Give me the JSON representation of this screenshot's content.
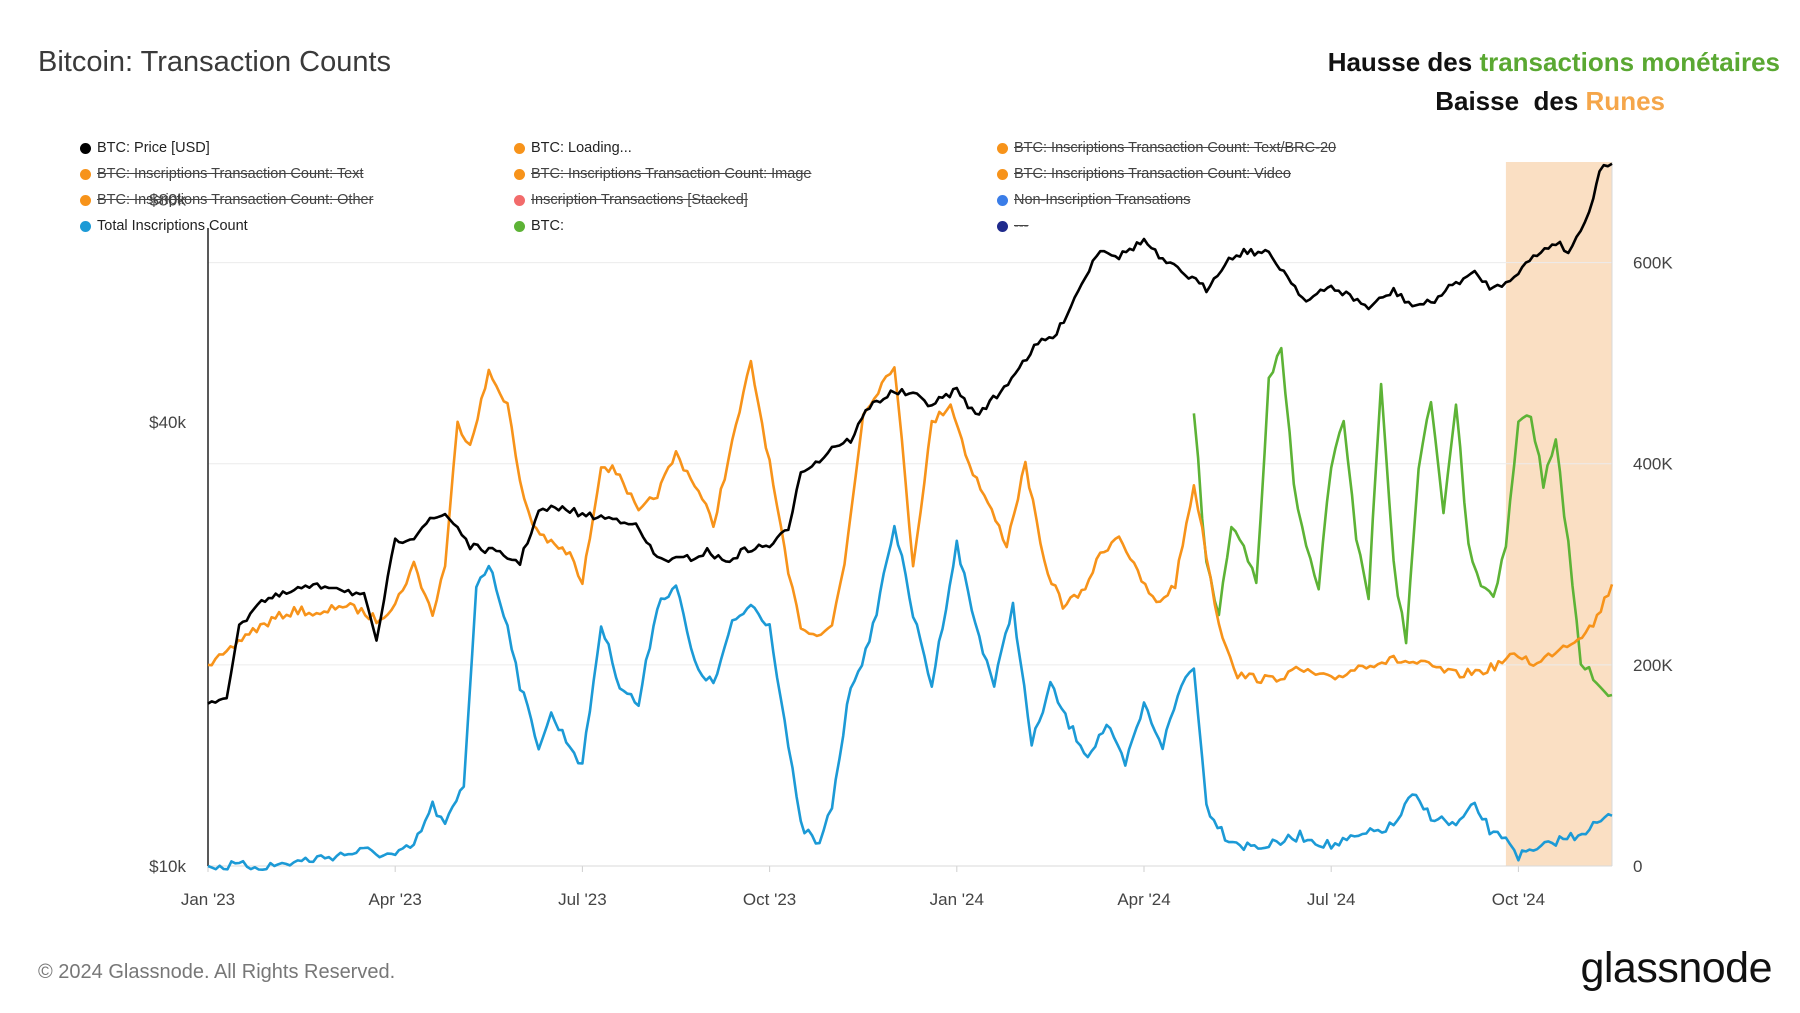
{
  "header": {
    "title": "Bitcoin: Transaction Counts",
    "annotation_line1_prefix": "Hausse des ",
    "annotation_line1_highlight": "transactions monétaires",
    "annotation_line2_prefix": "Baisse  des ",
    "annotation_line2_highlight": "Runes"
  },
  "footer": {
    "copyright": "© 2024 Glassnode. All Rights Reserved.",
    "logo": "glassnode"
  },
  "colors": {
    "price": "#000000",
    "orange": "#f7931a",
    "blue": "#1c9ad6",
    "green": "#5db336",
    "highlight": "#f9d9b8",
    "annotation_green": "#5aa832",
    "annotation_orange": "#f5a64a"
  },
  "legend": [
    {
      "label": "BTC: Price [USD]",
      "color": "#000000",
      "disabled": false
    },
    {
      "label": "BTC: Loading...",
      "color": "#f7931a",
      "disabled": false
    },
    {
      "label": "BTC: Inscriptions Transaction Count: Text/BRC-20",
      "color": "#f7931a",
      "disabled": true
    },
    {
      "label": "BTC: Inscriptions Transaction Count: Text",
      "color": "#f7931a",
      "disabled": true
    },
    {
      "label": "BTC: Inscriptions Transaction Count: Image",
      "color": "#f7931a",
      "disabled": true
    },
    {
      "label": "BTC: Inscriptions Transaction Count: Video",
      "color": "#f7931a",
      "disabled": true
    },
    {
      "label": "BTC: Inscriptions Transaction Count: Other",
      "color": "#f7931a",
      "disabled": true
    },
    {
      "label": "Inscription Transactions [Stacked]",
      "color": "#f26b6b",
      "disabled": true
    },
    {
      "label": "Non-Inscription Transations",
      "color": "#3a7de8",
      "disabled": true
    },
    {
      "label": "Total Inscriptions Count",
      "color": "#1c9ad6",
      "disabled": false
    },
    {
      "label": "BTC:",
      "color": "#5db336",
      "disabled": false
    },
    {
      "label": "---",
      "color": "#1f2a8c",
      "disabled": true
    }
  ],
  "chart_data": {
    "type": "line",
    "title": "Bitcoin: Transaction Counts",
    "x_range": [
      0,
      22.5
    ],
    "x_units": "months since Jan 2023",
    "x_ticks": [
      {
        "label": "Jan '23",
        "value": 0
      },
      {
        "label": "Apr '23",
        "value": 3
      },
      {
        "label": "Jul '23",
        "value": 6
      },
      {
        "label": "Oct '23",
        "value": 9
      },
      {
        "label": "Jan '24",
        "value": 12
      },
      {
        "label": "Apr '24",
        "value": 15
      },
      {
        "label": "Jul '24",
        "value": 18
      },
      {
        "label": "Oct '24",
        "value": 21
      }
    ],
    "left_axis": {
      "scale": "log",
      "range": [
        10000,
        90000
      ],
      "ticks": [
        {
          "label": "$10k",
          "value": 10000
        },
        {
          "label": "$40k",
          "value": 40000
        },
        {
          "label": "$80k",
          "value": 80000
        }
      ]
    },
    "right_axis": {
      "scale": "linear",
      "range": [
        0,
        700000
      ],
      "ticks": [
        {
          "label": "0",
          "value": 0
        },
        {
          "label": "200K",
          "value": 200000
        },
        {
          "label": "400K",
          "value": 400000
        },
        {
          "label": "600K",
          "value": 600000
        }
      ]
    },
    "highlight_range": [
      20.8,
      22.5
    ],
    "series": [
      {
        "name": "BTC: Price [USD]",
        "axis": "left",
        "color": "#000000",
        "x": [
          0,
          0.3,
          0.5,
          0.8,
          1.2,
          1.5,
          2,
          2.5,
          2.7,
          3,
          3.3,
          3.5,
          3.8,
          4,
          4.2,
          4.5,
          4.8,
          5,
          5.3,
          5.5,
          5.8,
          6,
          6.3,
          6.8,
          7.2,
          7.5,
          7.8,
          8,
          8.3,
          8.6,
          9,
          9.3,
          9.5,
          9.8,
          10,
          10.3,
          10.6,
          11,
          11.3,
          11.6,
          12,
          12.3,
          12.7,
          13,
          13.3,
          13.6,
          14,
          14.3,
          14.6,
          15,
          15.3,
          15.6,
          16,
          16.3,
          16.6,
          17,
          17.3,
          17.6,
          18,
          18.3,
          18.6,
          19,
          19.3,
          19.6,
          20,
          20.3,
          20.6,
          20.8,
          21,
          21.3,
          21.6,
          21.8,
          22,
          22.2,
          22.3,
          22.5
        ],
        "y": [
          16600,
          17000,
          21000,
          22800,
          23300,
          23800,
          24000,
          23200,
          20000,
          27500,
          28000,
          29200,
          30000,
          28800,
          27100,
          26800,
          26200,
          25800,
          30200,
          30500,
          30400,
          29900,
          29700,
          29300,
          26100,
          26000,
          26200,
          26700,
          25800,
          26800,
          27200,
          28500,
          34400,
          35400,
          37000,
          37800,
          42000,
          44000,
          43500,
          42200,
          44200,
          40800,
          43800,
          47500,
          51000,
          52500,
          61500,
          68800,
          67000,
          70500,
          66000,
          64000,
          60500,
          65800,
          68200,
          67600,
          63000,
          58200,
          61000,
          59200,
          57100,
          60200,
          57500,
          58000,
          61800,
          63500,
          60500,
          62000,
          64000,
          67500,
          70200,
          68000,
          72500,
          80500,
          88000,
          89500
        ]
      },
      {
        "name": "BTC: Loading...",
        "axis": "right",
        "color": "#f7931a",
        "x": [
          0,
          0.3,
          0.6,
          0.9,
          1.2,
          1.5,
          1.8,
          2.1,
          2.4,
          2.7,
          3,
          3.3,
          3.6,
          3.8,
          4,
          4.2,
          4.5,
          4.8,
          5,
          5.2,
          5.5,
          5.8,
          6,
          6.3,
          6.6,
          6.9,
          7.2,
          7.5,
          7.8,
          8.1,
          8.4,
          8.7,
          9,
          9.3,
          9.5,
          9.7,
          10,
          10.2,
          10.5,
          10.8,
          11,
          11.3,
          11.6,
          11.9,
          12.2,
          12.5,
          12.8,
          13.1,
          13.4,
          13.7,
          14,
          14.3,
          14.6,
          14.9,
          15.2,
          15.5,
          15.8,
          16,
          16.2,
          16.5,
          17,
          17.5,
          18,
          18.5,
          19,
          19.5,
          20,
          20.5,
          20.8,
          21,
          21.3,
          21.6,
          21.9,
          22.2,
          22.5
        ],
        "y": [
          200000,
          210000,
          230000,
          240000,
          250000,
          255000,
          248000,
          260000,
          255000,
          245000,
          260000,
          300000,
          250000,
          300000,
          440000,
          420000,
          490000,
          460000,
          380000,
          340000,
          320000,
          310000,
          280000,
          400000,
          390000,
          350000,
          370000,
          410000,
          380000,
          340000,
          420000,
          500000,
          400000,
          290000,
          240000,
          230000,
          240000,
          300000,
          450000,
          480000,
          500000,
          300000,
          440000,
          460000,
          400000,
          360000,
          320000,
          400000,
          300000,
          260000,
          270000,
          310000,
          330000,
          290000,
          260000,
          280000,
          380000,
          310000,
          240000,
          190000,
          185000,
          195000,
          185000,
          200000,
          205000,
          200000,
          190000,
          195000,
          205000,
          210000,
          200000,
          215000,
          225000,
          240000,
          280000
        ]
      },
      {
        "name": "Total Inscriptions Count",
        "axis": "right",
        "color": "#1c9ad6",
        "x": [
          0,
          0.5,
          1,
          1.5,
          2,
          2.5,
          3,
          3.3,
          3.6,
          3.8,
          4.1,
          4.3,
          4.5,
          4.8,
          5,
          5.3,
          5.5,
          5.8,
          6,
          6.3,
          6.6,
          6.9,
          7.2,
          7.5,
          7.8,
          8.1,
          8.4,
          8.7,
          9,
          9.3,
          9.5,
          9.8,
          10,
          10.3,
          10.6,
          11,
          11.3,
          11.6,
          12,
          12.3,
          12.6,
          12.9,
          13.2,
          13.5,
          13.8,
          14.1,
          14.4,
          14.7,
          15,
          15.3,
          15.6,
          15.8,
          16,
          16.3,
          16.6,
          17,
          17.5,
          18,
          18.5,
          19,
          19.3,
          19.6,
          20,
          20.3,
          20.6,
          20.8,
          21,
          21.3,
          21.6,
          21.9,
          22.2,
          22.5
        ],
        "y": [
          0,
          0,
          0,
          5000,
          10000,
          15000,
          10000,
          20000,
          60000,
          40000,
          80000,
          280000,
          300000,
          240000,
          180000,
          120000,
          150000,
          120000,
          100000,
          240000,
          180000,
          160000,
          260000,
          280000,
          200000,
          180000,
          240000,
          260000,
          240000,
          120000,
          40000,
          20000,
          60000,
          180000,
          220000,
          340000,
          250000,
          180000,
          320000,
          240000,
          180000,
          260000,
          120000,
          180000,
          140000,
          110000,
          140000,
          100000,
          160000,
          120000,
          180000,
          200000,
          60000,
          30000,
          20000,
          20000,
          30000,
          20000,
          30000,
          40000,
          70000,
          50000,
          40000,
          60000,
          30000,
          30000,
          10000,
          15000,
          25000,
          30000,
          40000,
          50000
        ]
      },
      {
        "name": "BTC:",
        "axis": "right",
        "color": "#5db336",
        "x": [
          15.8,
          16,
          16.2,
          16.4,
          16.6,
          16.8,
          17,
          17.2,
          17.4,
          17.6,
          17.8,
          18,
          18.2,
          18.4,
          18.6,
          18.8,
          19,
          19.2,
          19.4,
          19.6,
          19.8,
          20,
          20.2,
          20.4,
          20.6,
          20.8,
          21,
          21.2,
          21.4,
          21.6,
          21.8,
          22,
          22.2,
          22.5
        ],
        "y": [
          450000,
          300000,
          250000,
          340000,
          320000,
          280000,
          480000,
          520000,
          380000,
          320000,
          280000,
          400000,
          440000,
          330000,
          270000,
          480000,
          300000,
          220000,
          400000,
          460000,
          350000,
          460000,
          320000,
          280000,
          270000,
          320000,
          440000,
          450000,
          380000,
          420000,
          320000,
          200000,
          190000,
          170000
        ]
      }
    ]
  }
}
